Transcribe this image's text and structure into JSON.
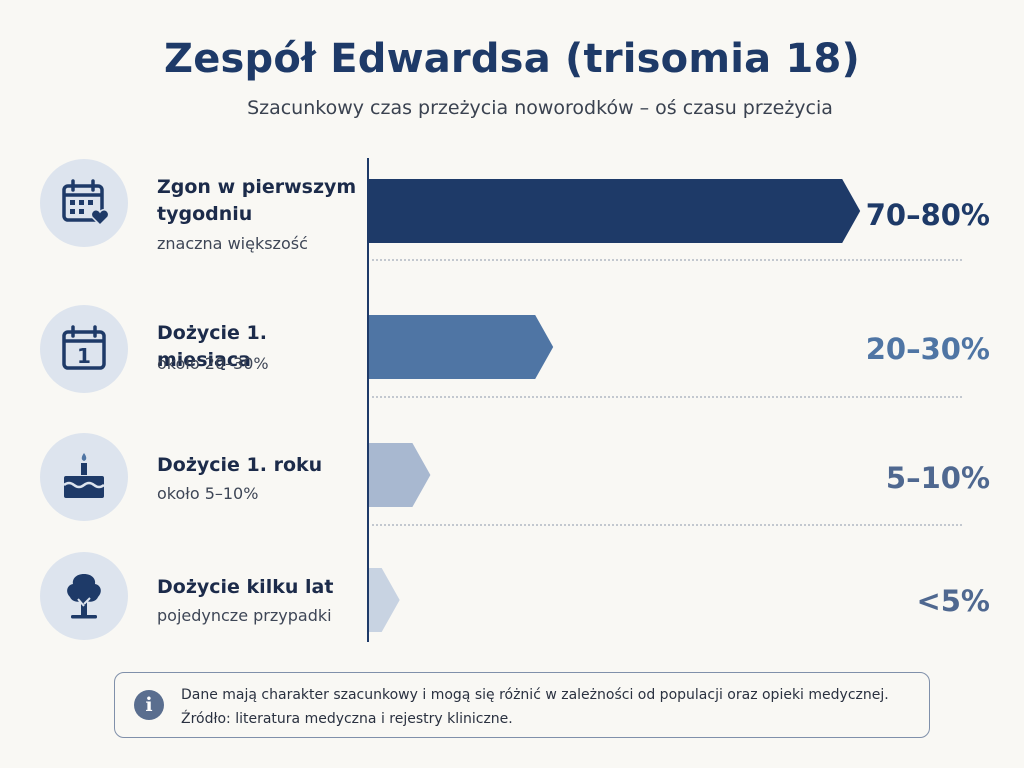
{
  "title": "Zespół Edwardsa (trisomia 18)",
  "subtitle": "Szacunkowy czas przeżycia noworodków – oś czasu przeżycia",
  "rows": [
    {
      "icon": "calendar-heart-icon",
      "label": "Zgon w pierwszym tygodniu",
      "sub": "znaczna większość",
      "pct": "70–80%",
      "color": "#1e3a68"
    },
    {
      "icon": "calendar-one-icon",
      "label": "Dożycie 1. miesiąca",
      "sub": "około 20–30%",
      "pct": "20–30%",
      "color": "#4f75a4"
    },
    {
      "icon": "birthday-cake-icon",
      "label": "Dożycie 1. roku",
      "sub": "około 5–10%",
      "pct": "5–10%",
      "color": "#a8b8d0"
    },
    {
      "icon": "tree-icon",
      "label": "Dożycie kilku lat",
      "sub": "pojedyncze przypadki",
      "pct": "<5%",
      "color": "#c8d3e2"
    }
  ],
  "note": {
    "icon": "info-icon",
    "line1": "Dane mają charakter szacunkowy i mogą się różnić w zależności od populacji oraz opieki medycznej.",
    "line2": "Źródło: literatura medyczna i rejestry kliniczne."
  },
  "chart_data": {
    "type": "bar",
    "orientation": "horizontal",
    "title": "Zespół Edwardsa (trisomia 18)",
    "subtitle": "Szacunkowy czas przeżycia noworodków – oś czasu przeżycia",
    "categories": [
      "Zgon w pierwszym tygodniu",
      "Dożycie 1. miesiąca",
      "Dożycie 1. roku",
      "Dożycie kilku lat"
    ],
    "values": [
      80,
      30,
      10,
      5
    ],
    "value_labels": [
      "70–80%",
      "20–30%",
      "5–10%",
      "<5%"
    ],
    "colors": [
      "#1e3a68",
      "#4f75a4",
      "#a8b8d0",
      "#c8d3e2"
    ],
    "xlim": [
      0,
      100
    ],
    "grid": false
  }
}
